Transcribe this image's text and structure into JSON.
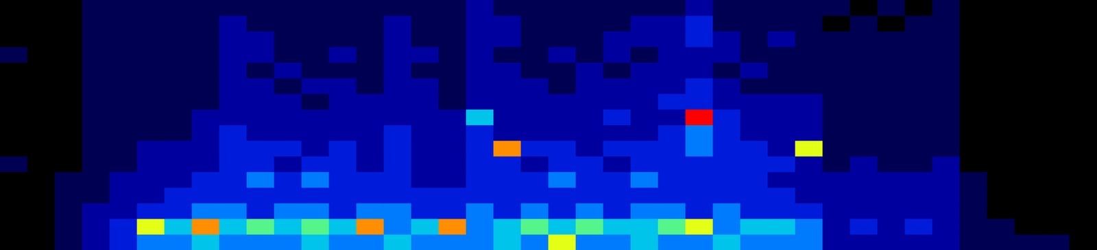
{
  "chart_data": {
    "type": "heatmap",
    "color": "jet",
    "grid": false,
    "tick_labels": false,
    "cells": [
      [
        0,
        0,
        0,
        1,
        1,
        1,
        1,
        1,
        1,
        1,
        1,
        1,
        1,
        1,
        1,
        1,
        1,
        2,
        1,
        1,
        1,
        1,
        1,
        1,
        1,
        2,
        1,
        1,
        1,
        1,
        1,
        0,
        1,
        0,
        1,
        0,
        0,
        0,
        0,
        0
      ],
      [
        0,
        0,
        0,
        1,
        1,
        1,
        1,
        1,
        2,
        1,
        1,
        1,
        1,
        1,
        2,
        1,
        1,
        2,
        2,
        1,
        1,
        1,
        1,
        2,
        2,
        3,
        1,
        1,
        1,
        1,
        0,
        1,
        0,
        1,
        1,
        0,
        0,
        0,
        0,
        0
      ],
      [
        0,
        0,
        0,
        1,
        1,
        1,
        1,
        1,
        2,
        2,
        1,
        1,
        1,
        1,
        2,
        1,
        1,
        2,
        2,
        1,
        1,
        1,
        2,
        2,
        2,
        3,
        2,
        1,
        2,
        1,
        1,
        1,
        1,
        1,
        1,
        0,
        0,
        0,
        0,
        0
      ],
      [
        1,
        0,
        0,
        1,
        1,
        1,
        1,
        1,
        2,
        2,
        1,
        1,
        2,
        1,
        2,
        2,
        1,
        2,
        1,
        1,
        2,
        1,
        2,
        1,
        2,
        2,
        2,
        1,
        1,
        1,
        1,
        1,
        1,
        1,
        1,
        0,
        0,
        0,
        0,
        0
      ],
      [
        0,
        0,
        0,
        1,
        1,
        1,
        1,
        1,
        2,
        1,
        2,
        1,
        1,
        1,
        2,
        1,
        1,
        2,
        2,
        1,
        1,
        2,
        1,
        2,
        2,
        2,
        1,
        2,
        1,
        1,
        1,
        1,
        1,
        1,
        1,
        0,
        0,
        0,
        0,
        0
      ],
      [
        0,
        0,
        0,
        1,
        1,
        1,
        1,
        1,
        2,
        2,
        1,
        2,
        2,
        1,
        2,
        2,
        1,
        2,
        2,
        2,
        1,
        2,
        2,
        2,
        2,
        3,
        2,
        1,
        1,
        1,
        1,
        1,
        1,
        1,
        1,
        0,
        0,
        0,
        0,
        0
      ],
      [
        0,
        0,
        0,
        1,
        1,
        1,
        1,
        1,
        2,
        2,
        2,
        1,
        2,
        2,
        2,
        2,
        1,
        2,
        2,
        2,
        2,
        2,
        2,
        2,
        3,
        3,
        2,
        2,
        2,
        2,
        1,
        1,
        1,
        1,
        1,
        0,
        0,
        0,
        0,
        0
      ],
      [
        0,
        0,
        0,
        1,
        1,
        1,
        1,
        2,
        2,
        2,
        2,
        2,
        2,
        2,
        2,
        2,
        2,
        5,
        2,
        2,
        2,
        2,
        3,
        2,
        2,
        9,
        3,
        2,
        2,
        2,
        1,
        1,
        1,
        1,
        1,
        0,
        0,
        0,
        0,
        0
      ],
      [
        0,
        0,
        0,
        1,
        1,
        1,
        1,
        2,
        3,
        2,
        2,
        2,
        2,
        2,
        3,
        2,
        2,
        3,
        2,
        2,
        2,
        2,
        2,
        2,
        3,
        4,
        3,
        2,
        2,
        2,
        1,
        1,
        1,
        1,
        1,
        0,
        0,
        0,
        0,
        0
      ],
      [
        0,
        0,
        0,
        1,
        1,
        2,
        2,
        2,
        3,
        3,
        3,
        2,
        3,
        2,
        3,
        2,
        2,
        3,
        8,
        3,
        3,
        2,
        3,
        3,
        3,
        4,
        3,
        3,
        2,
        7,
        1,
        1,
        1,
        1,
        1,
        0,
        0,
        0,
        0,
        0
      ],
      [
        1,
        0,
        0,
        1,
        1,
        2,
        2,
        2,
        3,
        3,
        2,
        3,
        3,
        2,
        3,
        2,
        2,
        3,
        3,
        2,
        3,
        3,
        2,
        3,
        3,
        3,
        3,
        3,
        3,
        2,
        1,
        2,
        1,
        1,
        2,
        0,
        0,
        0,
        0,
        0
      ],
      [
        0,
        0,
        1,
        1,
        2,
        2,
        2,
        3,
        3,
        4,
        3,
        4,
        3,
        3,
        3,
        2,
        2,
        3,
        3,
        3,
        4,
        3,
        3,
        4,
        3,
        3,
        3,
        3,
        2,
        2,
        2,
        2,
        2,
        2,
        2,
        1,
        0,
        0,
        0,
        0
      ],
      [
        0,
        0,
        1,
        1,
        2,
        2,
        3,
        3,
        3,
        3,
        3,
        3,
        3,
        3,
        3,
        3,
        3,
        3,
        3,
        3,
        3,
        3,
        3,
        3,
        3,
        3,
        3,
        3,
        3,
        2,
        2,
        2,
        2,
        2,
        2,
        1,
        0,
        0,
        0,
        0
      ],
      [
        0,
        0,
        1,
        2,
        2,
        3,
        3,
        4,
        4,
        3,
        4,
        4,
        3,
        4,
        4,
        3,
        3,
        4,
        3,
        4,
        3,
        4,
        3,
        4,
        4,
        3,
        4,
        3,
        3,
        3,
        2,
        2,
        2,
        2,
        2,
        1,
        0,
        0,
        0,
        0
      ],
      [
        0,
        0,
        1,
        2,
        3,
        7,
        5,
        8,
        5,
        6,
        5,
        6,
        5,
        8,
        4,
        5,
        8,
        4,
        5,
        6,
        5,
        6,
        5,
        5,
        6,
        7,
        4,
        5,
        5,
        4,
        2,
        3,
        2,
        3,
        2,
        1,
        1,
        0,
        0,
        0
      ],
      [
        0,
        0,
        1,
        2,
        3,
        4,
        4,
        5,
        4,
        4,
        4,
        5,
        4,
        4,
        5,
        4,
        4,
        4,
        5,
        4,
        7,
        4,
        4,
        5,
        4,
        4,
        5,
        4,
        4,
        4,
        2,
        2,
        2,
        2,
        2,
        1,
        1,
        1,
        1,
        0
      ]
    ]
  }
}
